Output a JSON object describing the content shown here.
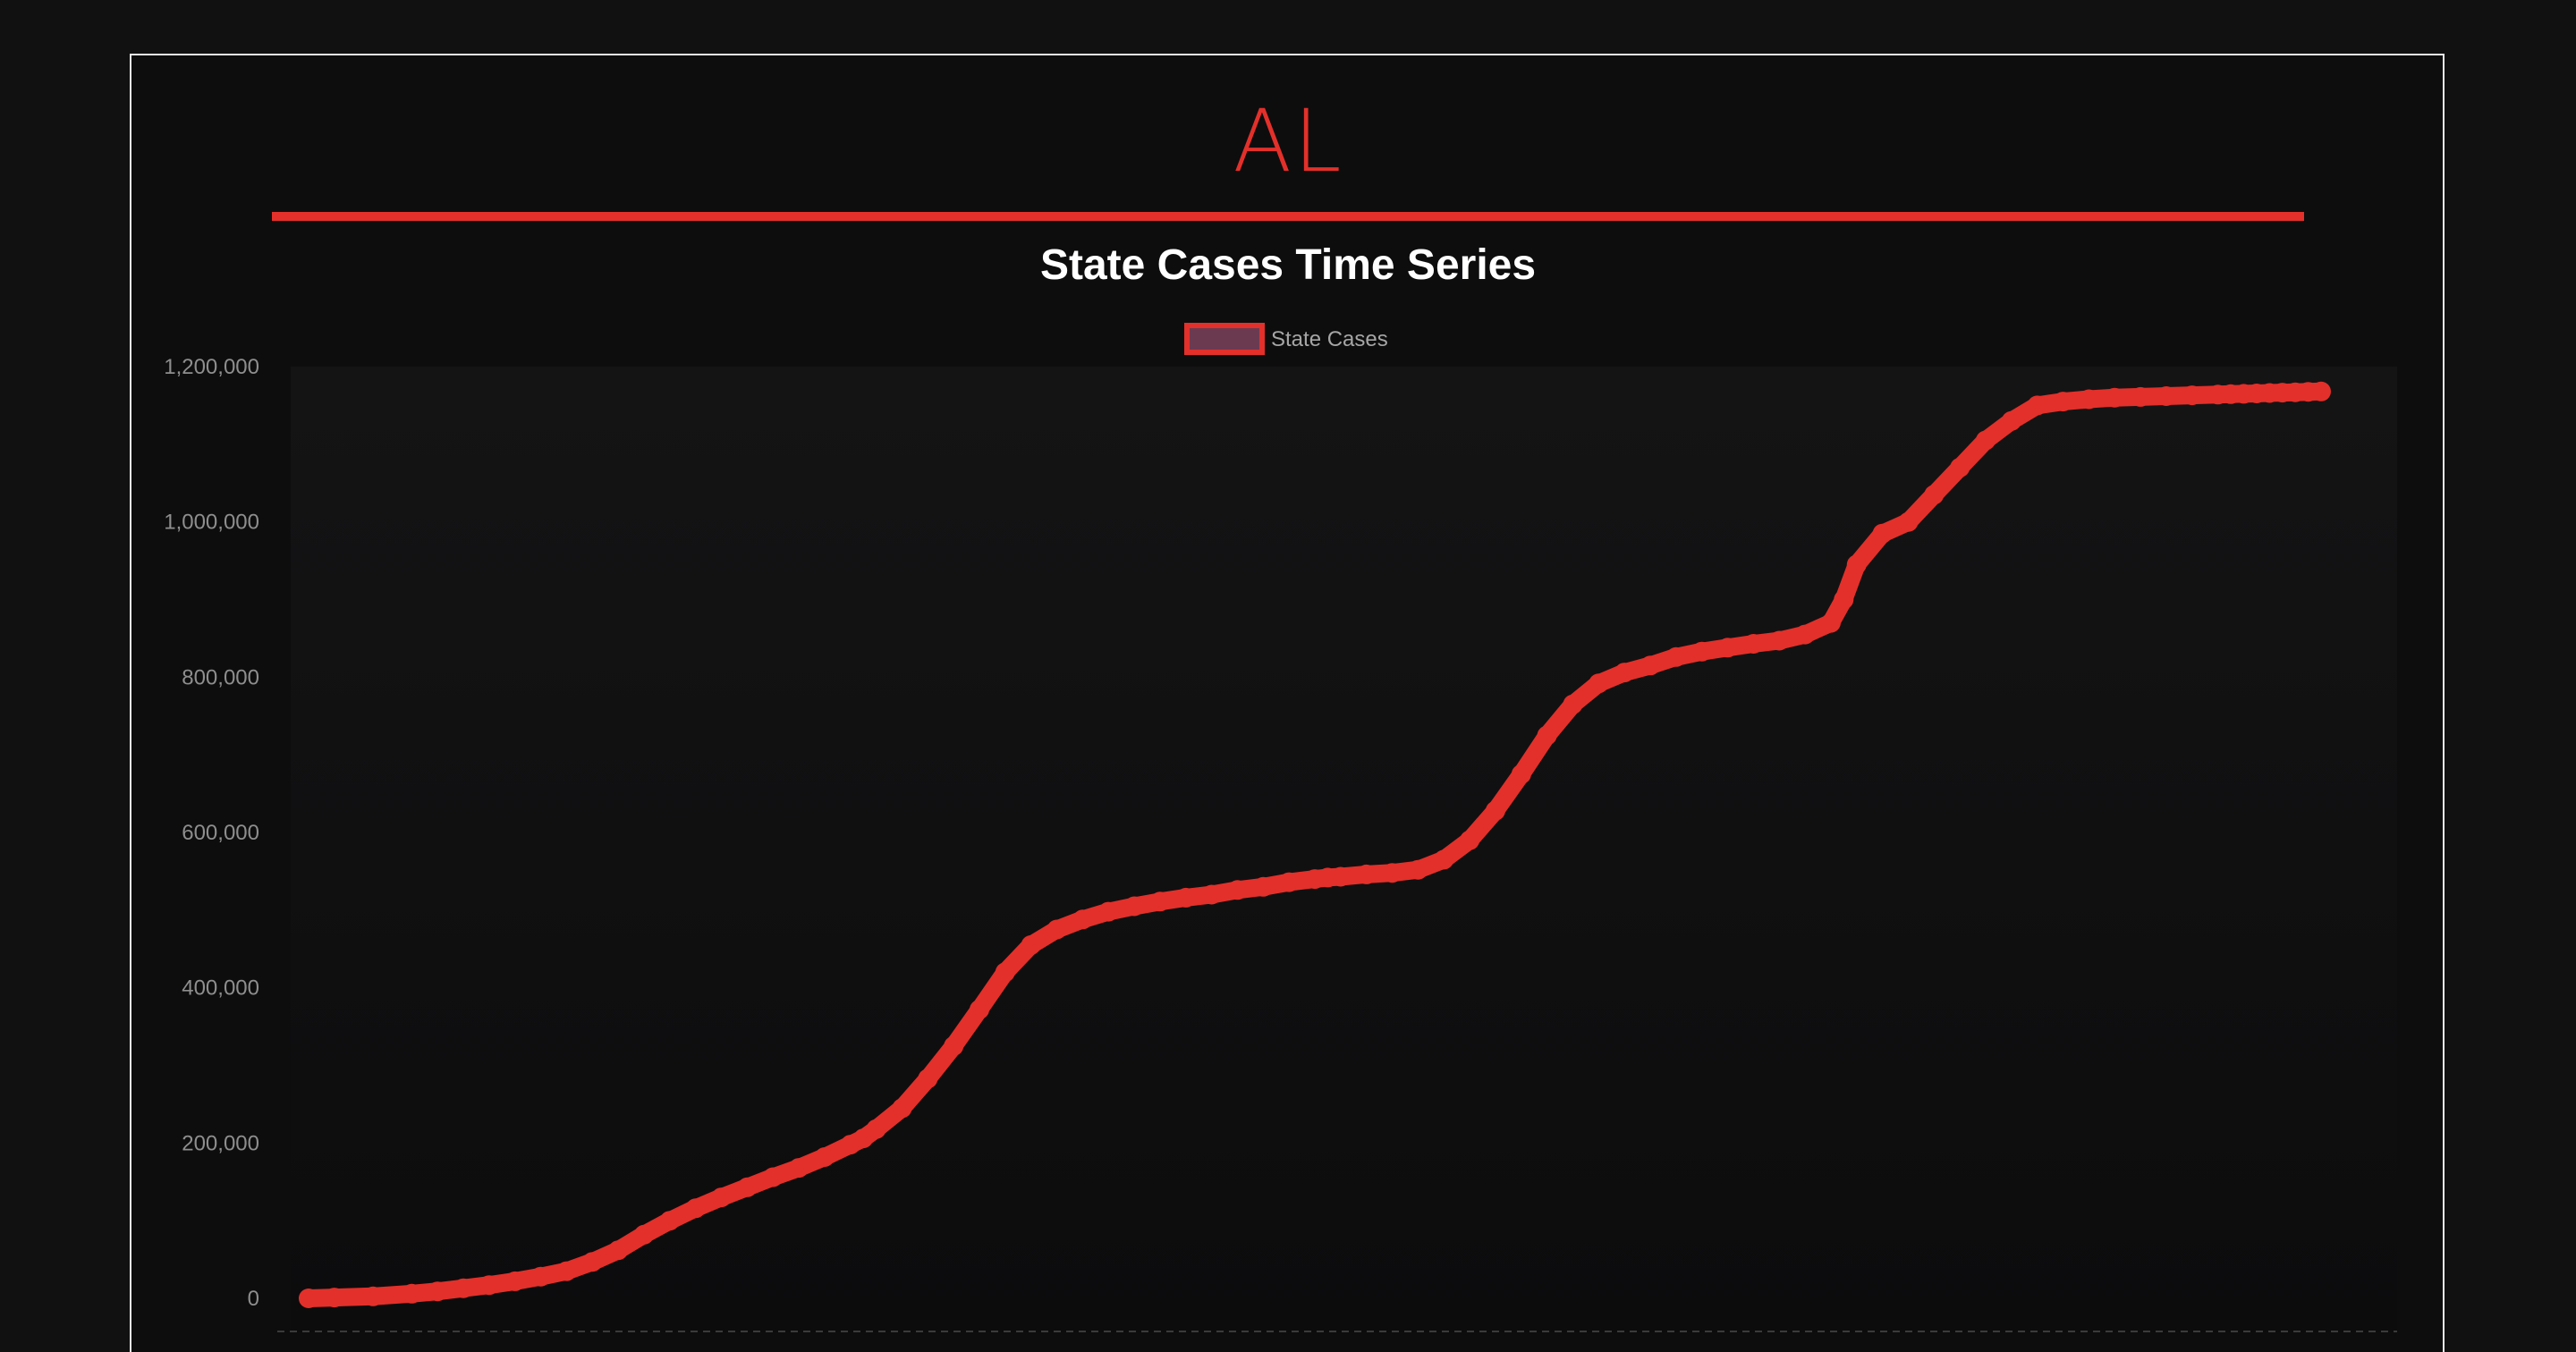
{
  "page": {
    "state": "AL",
    "accent_color": "#e3302a",
    "background": "#111112"
  },
  "chart_data": {
    "type": "line",
    "title": "State Cases Time Series",
    "legend": {
      "position": "top",
      "entries": [
        "State Cases"
      ]
    },
    "grid": false,
    "xlabel": "",
    "ylabel": "",
    "ylim": [
      0,
      1200000
    ],
    "yticks": [
      "0",
      "200,000",
      "400,000",
      "600,000",
      "800,000",
      "1,000,000",
      "1,200,000"
    ],
    "series": [
      {
        "name": "State Cases",
        "color": "#e3302a",
        "x": [
          0,
          10,
          25,
          40,
          50,
          60,
          70,
          80,
          90,
          100,
          110,
          120,
          130,
          140,
          150,
          160,
          170,
          180,
          190,
          200,
          210,
          215,
          220,
          230,
          240,
          250,
          260,
          270,
          280,
          290,
          300,
          310,
          320,
          330,
          340,
          350,
          360,
          370,
          380,
          390,
          395,
          400,
          410,
          420,
          430,
          440,
          450,
          460,
          470,
          480,
          490,
          500,
          510,
          520,
          530,
          540,
          550,
          560,
          570,
          580,
          590,
          595,
          600,
          610,
          620,
          630,
          640,
          650,
          660,
          670,
          680,
          690,
          700,
          710,
          720,
          730,
          740,
          745,
          750,
          755,
          760,
          765,
          770,
          775,
          780
        ],
        "y": [
          0,
          1000,
          2500,
          6000,
          9000,
          13000,
          17000,
          22000,
          28000,
          35000,
          47000,
          62000,
          82000,
          100000,
          116000,
          130000,
          143000,
          156000,
          168000,
          182000,
          198000,
          206000,
          218000,
          245000,
          283000,
          325000,
          372000,
          420000,
          455000,
          475000,
          488000,
          498000,
          505000,
          511000,
          516000,
          520000,
          526000,
          530000,
          536000,
          540000,
          542000,
          543000,
          546000,
          548000,
          552000,
          565000,
          590000,
          628000,
          675000,
          725000,
          765000,
          792000,
          806000,
          815000,
          826000,
          833000,
          838000,
          843000,
          847000,
          855000,
          870000,
          900000,
          945000,
          985000,
          1000000,
          1035000,
          1070000,
          1105000,
          1130000,
          1150000,
          1155000,
          1158000,
          1160000,
          1161000,
          1162000,
          1163000,
          1164000,
          1164500,
          1165000,
          1165500,
          1166000,
          1166500,
          1167000,
          1167500,
          1168000
        ],
        "x_range": [
          0,
          780
        ]
      }
    ]
  }
}
